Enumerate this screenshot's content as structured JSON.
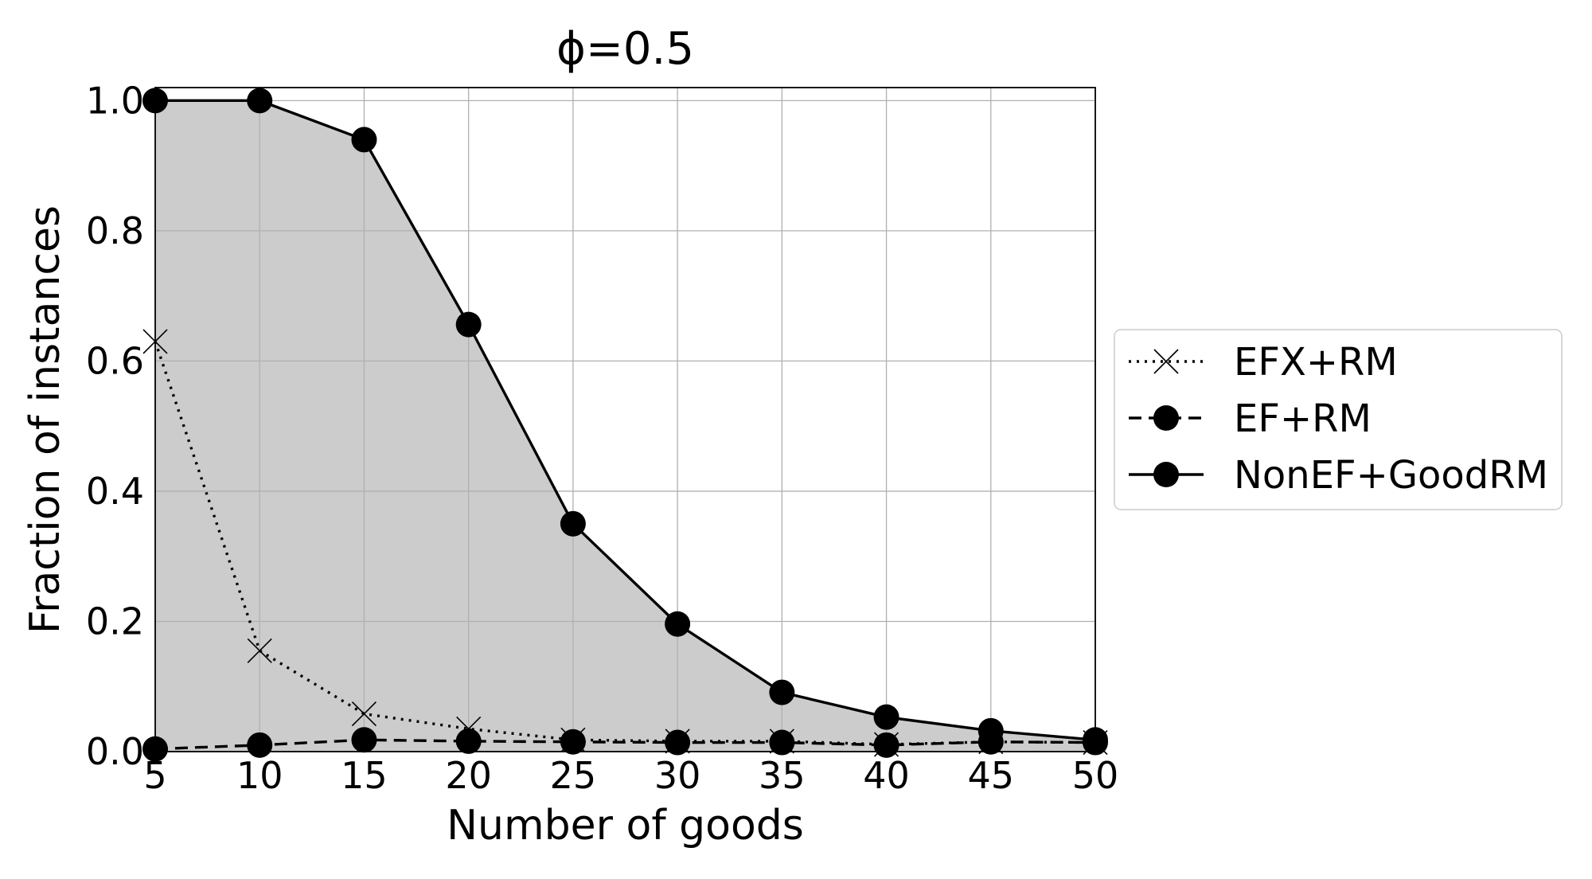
{
  "chart_data": {
    "type": "line",
    "title": "ϕ=0.5",
    "xlabel": "Number of goods",
    "ylabel": "Fraction of instances",
    "x": [
      5,
      10,
      15,
      20,
      25,
      30,
      35,
      40,
      45,
      50
    ],
    "xlim": [
      5,
      50
    ],
    "ylim": [
      0,
      1.02
    ],
    "xticks": [
      "5",
      "10",
      "15",
      "20",
      "25",
      "30",
      "35",
      "40",
      "45",
      "50"
    ],
    "yticks": [
      "0.0",
      "0.2",
      "0.4",
      "0.6",
      "0.8",
      "1.0"
    ],
    "grid": true,
    "legend_position": "right-outside",
    "shaded_area": {
      "under_series": "NonEF+GoodRM",
      "color": "#cccccc"
    },
    "series": [
      {
        "name": "EFX+RM",
        "style": "dotted",
        "marker": "x",
        "color": "#000000",
        "values": [
          0.63,
          0.155,
          0.058,
          0.035,
          0.018,
          0.016,
          0.016,
          0.011,
          0.015,
          0.014
        ]
      },
      {
        "name": "EF+RM",
        "style": "dashed",
        "marker": "circle",
        "color": "#000000",
        "values": [
          0.004,
          0.01,
          0.018,
          0.016,
          0.015,
          0.014,
          0.014,
          0.01,
          0.015,
          0.014
        ]
      },
      {
        "name": "NonEF+GoodRM",
        "style": "solid",
        "marker": "circle",
        "color": "#000000",
        "values": [
          1.0,
          1.0,
          0.94,
          0.656,
          0.35,
          0.196,
          0.091,
          0.053,
          0.032,
          0.018
        ]
      }
    ]
  }
}
